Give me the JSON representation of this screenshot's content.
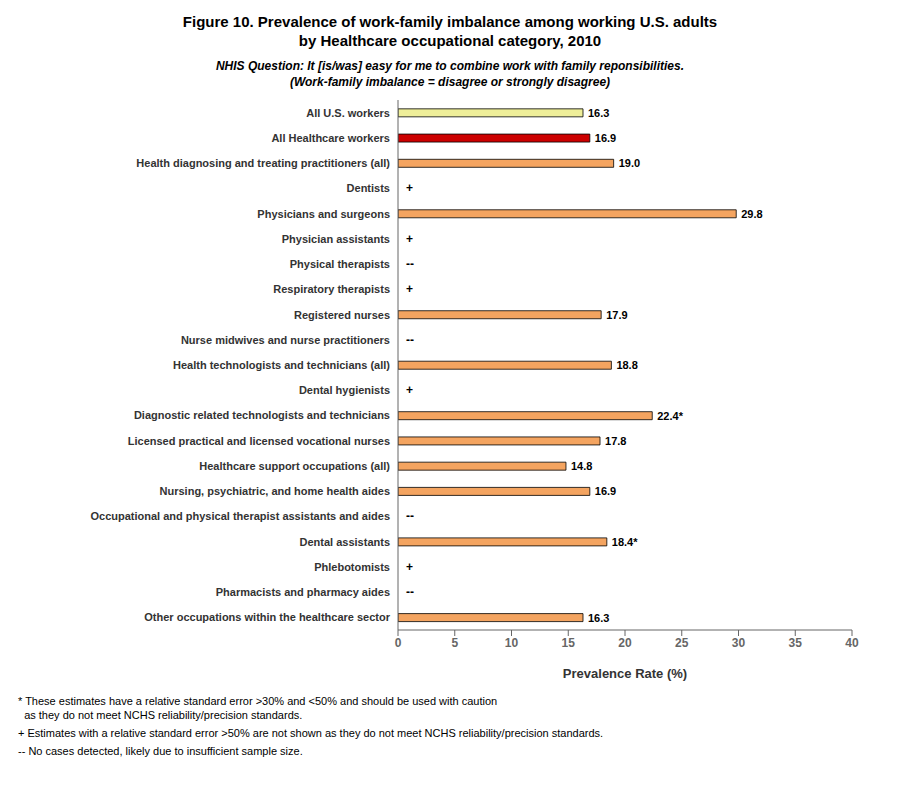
{
  "chart_data": {
    "type": "bar",
    "orientation": "horizontal",
    "title": "Figure 10. Prevalence of work-family imbalance among working U.S. adults\nby Healthcare occupational category, 2010",
    "subtitle": "NHIS Question: It [is/was] easy for me to combine work with family reponsibilities.\n(Work-family imbalance = disagree or strongly disagree)",
    "xlabel": "Prevalence Rate (%)",
    "xlim": [
      0,
      40
    ],
    "xticks": [
      0,
      5,
      10,
      15,
      20,
      25,
      30,
      35,
      40
    ],
    "categories": [
      "Other occupations within the healthcare sector",
      "Pharmacists and pharmacy aides",
      "Phlebotomists",
      "Dental assistants",
      "Occupational and physical therapist assistants and aides",
      "Nursing, psychiatric, and home health aides",
      "Healthcare support occupations (all)",
      "Licensed practical and licensed vocational nurses",
      "Diagnostic related technologists and technicians",
      "Dental hygienists",
      "Health technologists and technicians (all)",
      "Nurse midwives and nurse practitioners",
      "Registered nurses",
      "Respiratory therapists",
      "Physical therapists",
      "Physician assistants",
      "Physicians and surgeons",
      "Dentists",
      "Health diagnosing and treating practitioners (all)",
      "All Healthcare workers",
      "All U.S. workers"
    ],
    "values": [
      16.3,
      null,
      null,
      18.4,
      null,
      16.9,
      14.8,
      17.8,
      22.4,
      null,
      18.8,
      null,
      17.9,
      null,
      null,
      null,
      29.8,
      null,
      19.0,
      16.9,
      16.3
    ],
    "value_labels": [
      "16.3",
      "--",
      "+",
      "18.4*",
      "--",
      "16.9",
      "14.8",
      "17.8",
      "22.4*",
      "+",
      "18.8",
      "--",
      "17.9",
      "+",
      "--",
      "+",
      "29.8",
      "+",
      "19.0",
      "16.9",
      "16.3"
    ],
    "data_labels": true,
    "colors": [
      "#F4A460",
      "#FFFFFF",
      "#FFFFFF",
      "#F4A460",
      "#FFFFFF",
      "#F4A460",
      "#F4A460",
      "#F4A460",
      "#F4A460",
      "#FFFFFF",
      "#F4A460",
      "#FFFFFF",
      "#F4A460",
      "#FFFFFF",
      "#FFFFFF",
      "#FFFFFF",
      "#F4A460",
      "#FFFFFF",
      "#F4A460",
      "#CC0000",
      "#EEEE99"
    ],
    "annotations": [
      "* These estimates have a relative standard error >30% and <50% and should be used with caution\n  as they do not meet NCHS reliability/precision standards.",
      "+ Estimates with a relative standard error >50% are not shown as they do not meet NCHS reliability/precision standards.",
      "-- No cases detected, likely due to insufficient sample size."
    ]
  }
}
